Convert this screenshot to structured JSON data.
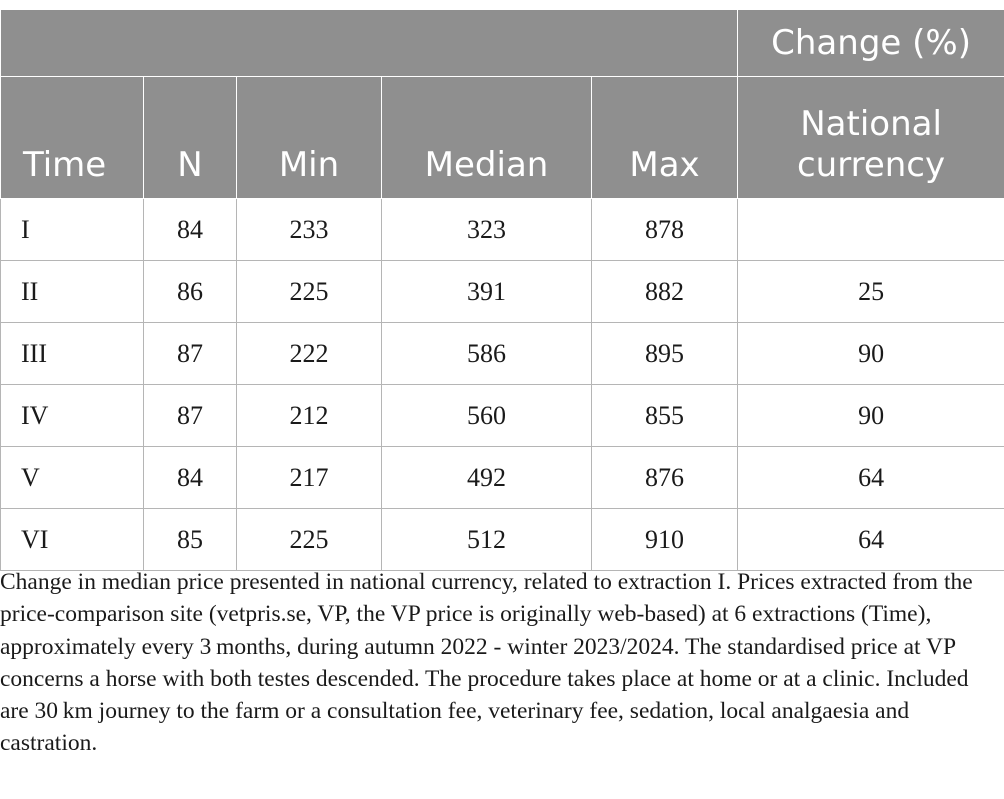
{
  "table": {
    "header": {
      "group_label": "Change (%)",
      "columns": [
        "Time",
        "N",
        "Min",
        "Median",
        "Max"
      ],
      "change_column": [
        "National",
        "currency"
      ]
    },
    "rows": [
      {
        "time": "I",
        "n": "84",
        "min": "233",
        "median": "323",
        "max": "878",
        "change": ""
      },
      {
        "time": "II",
        "n": "86",
        "min": "225",
        "median": "391",
        "max": "882",
        "change": "25"
      },
      {
        "time": "III",
        "n": "87",
        "min": "222",
        "median": "586",
        "max": "895",
        "change": "90"
      },
      {
        "time": "IV",
        "n": "87",
        "min": "212",
        "median": "560",
        "max": "855",
        "change": "90"
      },
      {
        "time": "V",
        "n": "84",
        "min": "217",
        "median": "492",
        "max": "876",
        "change": "64"
      },
      {
        "time": "VI",
        "n": "85",
        "min": "225",
        "median": "512",
        "max": "910",
        "change": "64"
      }
    ]
  },
  "caption": "Change in median price presented in national currency, related to extraction I. Prices extracted from the price-comparison site (vetpris.se, VP, the VP price is originally web-based) at 6 extractions (Time), approximately every 3 months, during autumn 2022 - winter 2023/2024. The standardised price at VP concerns a horse with both testes descended. The procedure takes place at home or at a clinic. Included are 30 km journey to the farm or a consultation fee, veterinary fee, sedation, local analgaesia and castration.",
  "colors": {
    "header_bg": "#8f8f8f",
    "header_text": "#ffffff",
    "grid": "#b5b5b5",
    "body_text": "#1a1a1a"
  }
}
